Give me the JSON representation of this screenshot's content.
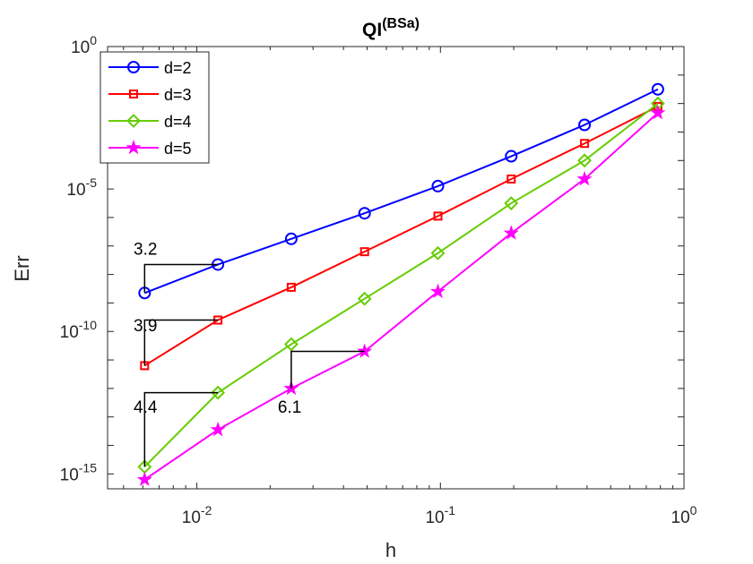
{
  "chart_data": {
    "type": "line",
    "title": {
      "base": "QI",
      "sup": "(BSa)"
    },
    "xlabel": "h",
    "ylabel": "Err",
    "xscale": "log",
    "yscale": "log",
    "xlim": [
      0.0043,
      1.0
    ],
    "ylim": [
      3e-16,
      1.0
    ],
    "xticks": [
      {
        "value": 0.01,
        "base": "10",
        "exp": "-2"
      },
      {
        "value": 0.1,
        "base": "10",
        "exp": "-1"
      },
      {
        "value": 1,
        "base": "10",
        "exp": "0"
      }
    ],
    "yticks": [
      {
        "value": 1e-15,
        "base": "10",
        "exp": "-15"
      },
      {
        "value": 1e-10,
        "base": "10",
        "exp": "-10"
      },
      {
        "value": 1e-05,
        "base": "10",
        "exp": "-5"
      },
      {
        "value": 1,
        "base": "10",
        "exp": "0"
      }
    ],
    "grid": false,
    "legend_position": "top-left",
    "x": [
      0.78125,
      0.390625,
      0.1953125,
      0.09765625,
      0.048828125,
      0.0244140625,
      0.01220703125,
      0.006103515625
    ],
    "series": [
      {
        "name": "d=2",
        "color": "#0000ff",
        "marker": "circle",
        "values": [
          0.0316,
          0.00178,
          0.000141,
          1.26e-05,
          1.41e-06,
          1.78e-07,
          2.24e-08,
          2.24e-09
        ]
      },
      {
        "name": "d=3",
        "color": "#ff0000",
        "marker": "square",
        "values": [
          0.0079,
          0.000398,
          2.24e-05,
          1.12e-06,
          6.3e-08,
          3.55e-09,
          2.51e-10,
          6.3e-12
        ]
      },
      {
        "name": "d=4",
        "color": "#66cc00",
        "marker": "diamond",
        "values": [
          0.01,
          0.0001,
          3.16e-06,
          5.6e-08,
          1.41e-09,
          3.55e-11,
          7.1e-13,
          1.78e-15
        ]
      },
      {
        "name": "d=5",
        "color": "#ff00ff",
        "marker": "star",
        "values": [
          0.0047,
          2.24e-05,
          2.82e-07,
          2.51e-09,
          2e-11,
          1e-12,
          3.55e-14,
          6.3e-16
        ]
      }
    ],
    "slope_annotations": [
      {
        "label": "3.2",
        "x1": 0.006103515625,
        "y1": 2.24e-09,
        "x2": 0.01220703125,
        "y2": 2.24e-08,
        "label_x": 0.0055,
        "label_y": 5e-08
      },
      {
        "label": "3.9",
        "x1": 0.006103515625,
        "y1": 6.3e-12,
        "x2": 0.01220703125,
        "y2": 2.51e-10,
        "label_x": 0.0055,
        "label_y": 1e-10
      },
      {
        "label": "4.4",
        "x1": 0.006103515625,
        "y1": 1.78e-15,
        "x2": 0.01220703125,
        "y2": 7.1e-13,
        "label_x": 0.0055,
        "label_y": 1.4e-13
      },
      {
        "label": "6.1",
        "x1": 0.0244140625,
        "y1": 1e-12,
        "x2": 0.048828125,
        "y2": 2e-11,
        "label_x": 0.0215,
        "label_y": 1.4e-13
      }
    ]
  }
}
